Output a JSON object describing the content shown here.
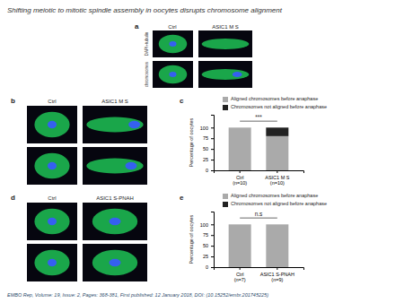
{
  "chart_data": [
    {
      "type": "bar",
      "title": "Shifting meiotic to mitotic spindle assembly in oocytes disrupts chromosome alignment",
      "categories": [
        "Ctrl\n(n=10)",
        "ASIC1 M S\n(n=10)"
      ],
      "series": [
        {
          "name": "Aligned chromosomes before anaphase",
          "color": "#aaaaaa",
          "values": [
            100,
            80
          ]
        },
        {
          "name": "Chromosomes not aligned before anaphase",
          "color": "#222222",
          "values": [
            null,
            20
          ]
        }
      ],
      "stacked": true,
      "ylabel": "Percentage of oocytes",
      "ylim": [
        0,
        130
      ],
      "yticks": [
        0,
        25,
        50,
        75,
        100
      ],
      "grid": false,
      "legend": "top",
      "annotations": [
        "a",
        "Ctrl",
        "ASIC1 M S",
        "DAPI+tubulin",
        "chromosomes",
        "b",
        "Ctrl",
        "ASIC1 M S",
        "c",
        "***",
        "EMBO Rep, Volume: 19, Issue: 2, Pages: 368-381, First published: 12 January 2018, DOI: (10.15252/embr.201745225)"
      ]
    },
    {
      "type": "bar",
      "categories": [
        "Ctrl\n(n=7)",
        "ASIC1 S-PNAH\n(n=9)"
      ],
      "series": [
        {
          "name": "Aligned chromosomes before anaphase",
          "color": "#aaaaaa",
          "values": [
            100,
            100
          ]
        },
        {
          "name": "Chromosomes not aligned before anaphase",
          "color": "#222222",
          "values": [
            null,
            null
          ]
        }
      ],
      "stacked": true,
      "ylabel": "Percentage of oocytes",
      "ylim": [
        0,
        130
      ],
      "yticks": [
        0,
        25,
        50,
        75,
        100
      ],
      "grid": false,
      "legend": "top",
      "annotations": [
        "d",
        "Ctrl",
        "ASIC1 S-PNAH",
        "e",
        "n.s"
      ]
    }
  ]
}
